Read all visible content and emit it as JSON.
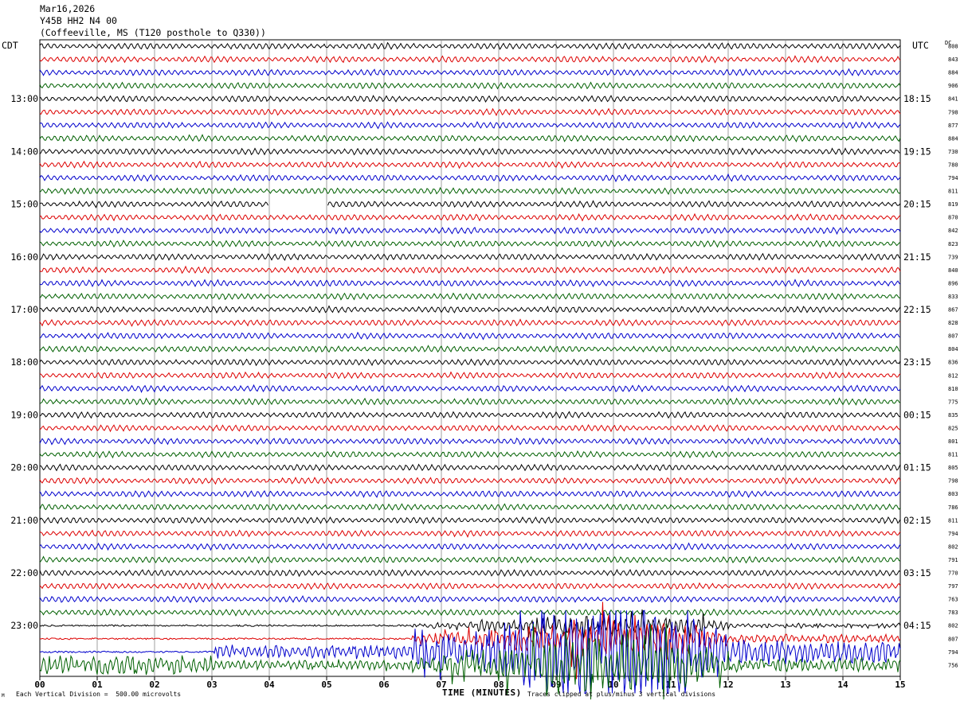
{
  "header": {
    "date": "Mar16,2026",
    "station": "Y45B HH2 N4 00",
    "location": "(Coffeeville, MS (T120 posthole to Q330))"
  },
  "left_timezone": "CDT",
  "right_timezone": "UTC",
  "dc_label": "DC",
  "footer": {
    "scale": "Each Vertical Division =  500.00 microvolts",
    "clip": "Traces clipped at plus/minus 3 vertical divisions",
    "marker": "M"
  },
  "colors": {
    "trace": [
      "#000000",
      "#dd0000",
      "#0000cc",
      "#006000"
    ],
    "grid": "#888888"
  },
  "chart_data": {
    "type": "line",
    "title": "Y45B HH2 N4 00",
    "xlabel": "TIME (MINUTES)",
    "x_ticks": [
      "00",
      "01",
      "02",
      "03",
      "04",
      "05",
      "06",
      "07",
      "08",
      "09",
      "10",
      "11",
      "12",
      "13",
      "14",
      "15"
    ],
    "xlim": [
      0,
      15
    ],
    "trace_minutes": 15,
    "left_hour_labels": [
      "13:00",
      "14:00",
      "15:00",
      "16:00",
      "17:00",
      "18:00",
      "19:00",
      "20:00",
      "21:00",
      "22:00",
      "23:00"
    ],
    "right_hour_labels": [
      "18:15",
      "19:15",
      "20:15",
      "21:15",
      "22:15",
      "23:15",
      "00:15",
      "01:15",
      "02:15",
      "03:15",
      "04:15"
    ],
    "dc_offsets": [
      808,
      843,
      884,
      906,
      841,
      798,
      877,
      884,
      730,
      780,
      794,
      811,
      819,
      870,
      842,
      823,
      739,
      840,
      896,
      833,
      867,
      828,
      807,
      804,
      836,
      812,
      810,
      775,
      835,
      825,
      801,
      811,
      805,
      798,
      803,
      786,
      811,
      794,
      802,
      791,
      770,
      797,
      763,
      783,
      802,
      807,
      794,
      756
    ],
    "gaps": [
      {
        "trace_index": 12,
        "from_minute": 4.0,
        "to_minute": 5.0
      }
    ],
    "event": {
      "from_minute": 6.5,
      "to_minute": 12.0,
      "peak_minute": 10.0,
      "traces": [
        44,
        45,
        46,
        47
      ]
    }
  }
}
